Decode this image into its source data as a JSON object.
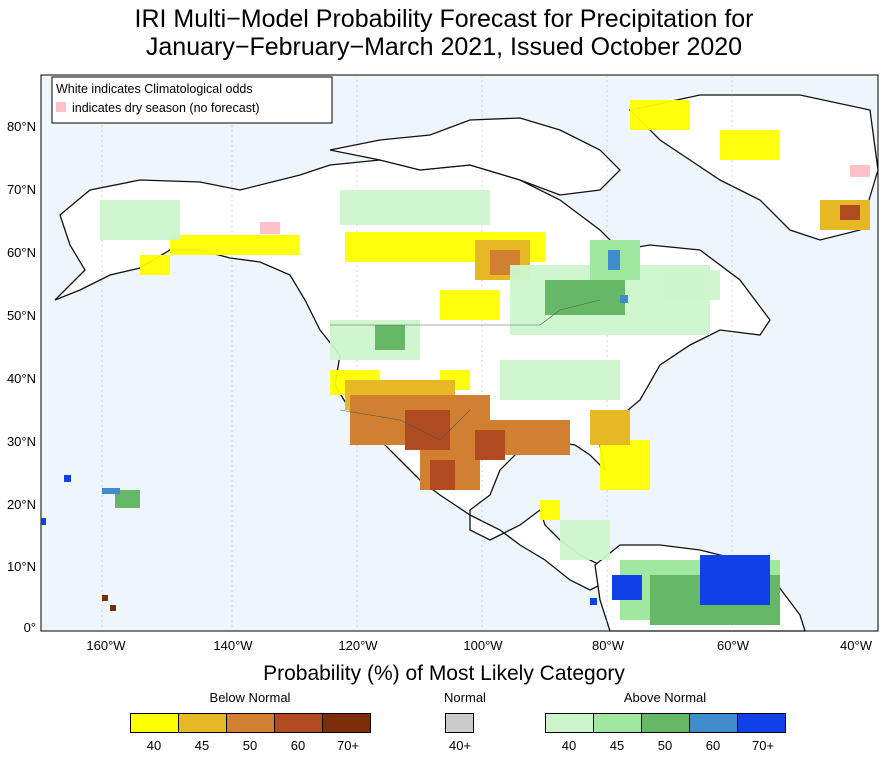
{
  "title": {
    "line1": "IRI Multi−Model Probability Forecast for Precipitation for",
    "line2": "January−February−March 2021, Issued October 2020"
  },
  "notes": {
    "white": "White indicates Climatological odds",
    "pink": "indicates dry season (no forecast)"
  },
  "axes": {
    "lat_labels": [
      "80°N",
      "70°N",
      "60°N",
      "50°N",
      "40°N",
      "30°N",
      "20°N",
      "10°N",
      "0°"
    ],
    "lon_labels": [
      "160°W",
      "140°W",
      "120°W",
      "100°W",
      "80°W",
      "60°W",
      "40°W"
    ]
  },
  "legend": {
    "heading": "Probability (%) of Most Likely Category",
    "below": {
      "label": "Below Normal",
      "colors": [
        "#ffff00",
        "#e6b825",
        "#d08030",
        "#b04a20",
        "#7a2e0a"
      ],
      "ticks": [
        "40",
        "45",
        "50",
        "60",
        "70+"
      ]
    },
    "normal": {
      "label": "Normal",
      "colors": [
        "#cccccc"
      ],
      "ticks": [
        "40+"
      ]
    },
    "above": {
      "label": "Above Normal",
      "colors": [
        "#ccf5cc",
        "#a0e8a0",
        "#66b866",
        "#3e8ccc",
        "#1040e8"
      ],
      "ticks": [
        "40",
        "45",
        "50",
        "60",
        "70+"
      ]
    }
  },
  "colors": {
    "ocean": "#eef6fc",
    "land": "#ffffff",
    "dry_season": "#ffc0c8"
  }
}
